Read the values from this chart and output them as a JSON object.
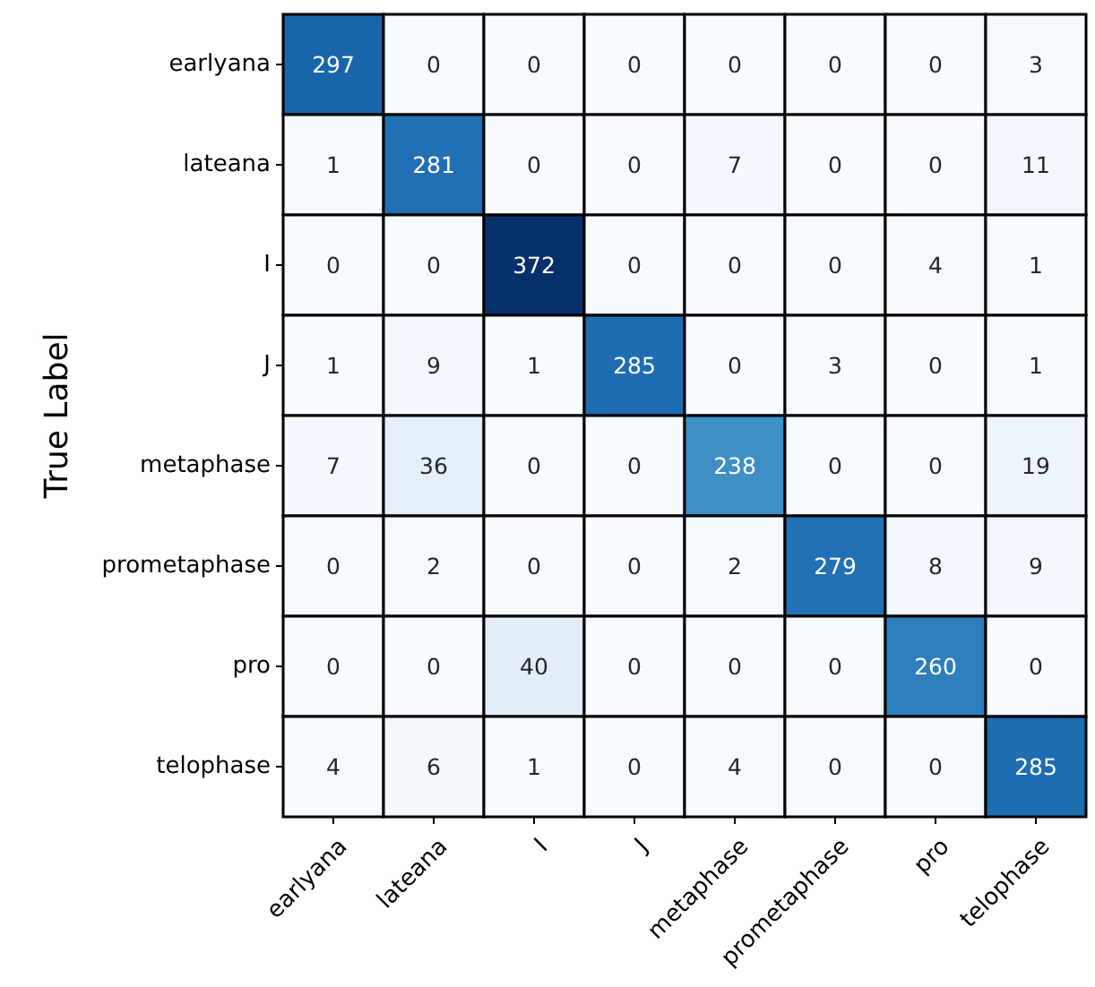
{
  "chart_data": {
    "type": "heatmap",
    "ylabel": "True Label",
    "categories": [
      "earlyana",
      "lateana",
      "I",
      "J",
      "metaphase",
      "prometaphase",
      "pro",
      "telophase"
    ],
    "y_categories": [
      "earlyana",
      "lateana",
      "I",
      "J",
      "metaphase",
      "prometaphase",
      "pro",
      "telophase"
    ],
    "cells": [
      [
        297,
        0,
        0,
        0,
        0,
        0,
        0,
        3
      ],
      [
        1,
        281,
        0,
        0,
        7,
        0,
        0,
        11
      ],
      [
        0,
        0,
        372,
        0,
        0,
        0,
        4,
        1
      ],
      [
        1,
        9,
        1,
        285,
        0,
        3,
        0,
        1
      ],
      [
        7,
        36,
        0,
        0,
        238,
        0,
        0,
        19
      ],
      [
        0,
        2,
        0,
        0,
        2,
        279,
        8,
        9
      ],
      [
        0,
        0,
        40,
        0,
        0,
        0,
        260,
        0
      ],
      [
        4,
        6,
        1,
        0,
        4,
        0,
        0,
        285
      ]
    ],
    "data_labels": true
  }
}
